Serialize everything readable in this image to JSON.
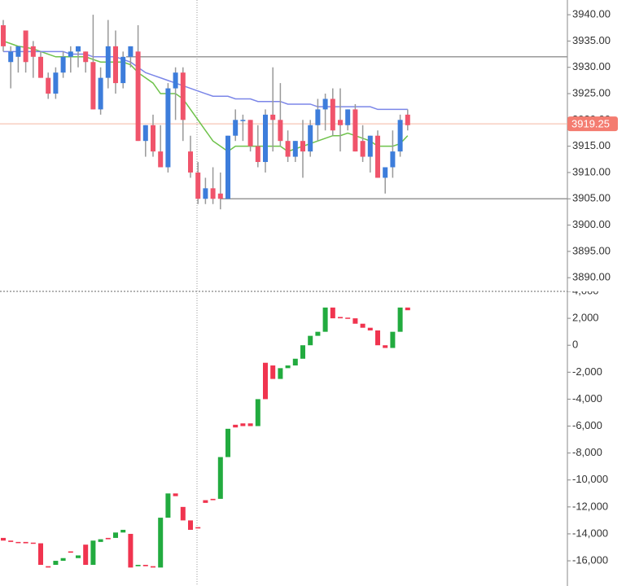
{
  "chart_data": [
    {
      "type": "candlestick",
      "open": [
        3938,
        3931,
        3932,
        3937,
        3934,
        3932,
        3928,
        3925,
        3929,
        3932,
        3933,
        3933,
        3931,
        3922,
        3928,
        3934,
        3927,
        3932,
        3933,
        3916,
        3919,
        3914,
        3911,
        3926,
        3929,
        3914,
        3910,
        3905,
        3907,
        3906,
        3905,
        3917,
        3920,
        3920,
        3915,
        3912,
        3921,
        3920,
        3916,
        3913,
        3916,
        3914,
        3919,
        3922,
        3924,
        3920,
        3919,
        3922,
        3916,
        3913,
        3917,
        3909,
        3911,
        3914,
        3921
      ],
      "high": [
        3939,
        3934,
        3934,
        3937,
        3935,
        3933,
        3929,
        3930,
        3933,
        3934,
        3934,
        3933,
        3940,
        3930,
        3939,
        3937,
        3933,
        3934,
        3938,
        3919,
        3921,
        3919,
        3927,
        3930,
        3930,
        3917,
        3912,
        3909,
        3911,
        3910,
        3917,
        3922,
        3921,
        3920,
        3919,
        3922,
        3930,
        3927,
        3918,
        3916,
        3920,
        3920,
        3924,
        3925,
        3926,
        3926,
        3922,
        3923,
        3919,
        3917,
        3918,
        3911,
        3918,
        3921,
        3922
      ],
      "low": [
        3933,
        3926,
        3929,
        3929,
        3928,
        3928,
        3924,
        3924,
        3928,
        3929,
        3930,
        3929,
        3922,
        3921,
        3926,
        3925,
        3926,
        3930,
        3916,
        3913,
        3913,
        3911,
        3910,
        3920,
        3916,
        3909,
        3904,
        3904,
        3904,
        3903,
        3905,
        3916,
        3916,
        3914,
        3911,
        3910,
        3914,
        3915,
        3912,
        3912,
        3909,
        3913,
        3916,
        3918,
        3917,
        3914,
        3918,
        3914,
        3912,
        3910,
        3909,
        3906,
        3909,
        3913,
        3918
      ],
      "close": [
        3934,
        3933,
        3934,
        3931,
        3932,
        3928,
        3925,
        3929,
        3932,
        3933,
        3934,
        3931,
        3922,
        3928,
        3934,
        3927,
        3932,
        3934,
        3916,
        3919,
        3914,
        3911,
        3926,
        3929,
        3920,
        3910,
        3905,
        3907,
        3905,
        3905,
        3917,
        3920,
        3920,
        3915,
        3912,
        3921,
        3920,
        3916,
        3913,
        3916,
        3914,
        3919,
        3922,
        3924,
        3918,
        3919,
        3922,
        3914,
        3913,
        3917,
        3909,
        3911,
        3914,
        3920,
        3919
      ],
      "up_color": "#3d7ddb",
      "down_color": "#f0546b",
      "lines": [
        {
          "color": "#6ec24a",
          "values": [
            3935,
            3934.5,
            3934,
            3933.8,
            3933.5,
            3933,
            3932.5,
            3932,
            3932,
            3932,
            3932,
            3932,
            3931.5,
            3931,
            3931,
            3931,
            3931,
            3930.5,
            3929,
            3928,
            3927,
            3925,
            3925,
            3925,
            3924,
            3922,
            3920,
            3918,
            3916,
            3915,
            3914,
            3915,
            3915,
            3915,
            3915,
            3915,
            3915,
            3915,
            3914,
            3914.5,
            3915,
            3915.5,
            3916,
            3916.5,
            3917,
            3917,
            3917.5,
            3917,
            3916.5,
            3916,
            3915,
            3915,
            3915,
            3915.5,
            3917
          ]
        },
        {
          "color": "#7b86e8",
          "values": [
            3933,
            3933,
            3933,
            3933,
            3933,
            3933,
            3933,
            3933,
            3933,
            3932.5,
            3932.5,
            3932.5,
            3932,
            3932,
            3932,
            3932,
            3931.5,
            3931,
            3930,
            3929,
            3928.5,
            3928,
            3927.5,
            3927,
            3926.5,
            3926,
            3925.5,
            3925,
            3924.5,
            3924.5,
            3924.5,
            3924,
            3924,
            3924,
            3923.5,
            3923.5,
            3923.5,
            3923.5,
            3923,
            3923,
            3923,
            3923,
            3922.5,
            3922.5,
            3922.5,
            3922.5,
            3922.5,
            3922.5,
            3922.5,
            3922.5,
            3922,
            3922,
            3922,
            3922,
            3922
          ]
        }
      ],
      "levels": [
        3932,
        3905
      ],
      "last_price": 3919.25,
      "ylim": [
        3887.4,
        3942.8
      ],
      "yticks": [
        {
          "value": 3890,
          "label": "3890.00"
        },
        {
          "value": 3895,
          "label": "3895.00"
        },
        {
          "value": 3900,
          "label": "3900.00"
        },
        {
          "value": 3905,
          "label": "3905.00"
        },
        {
          "value": 3910,
          "label": "3910.00"
        },
        {
          "value": 3915,
          "label": "3915.00"
        },
        {
          "value": 3920,
          "label": "3920.00"
        },
        {
          "value": 3925,
          "label": "3925.00"
        },
        {
          "value": 3930,
          "label": "3930.00"
        },
        {
          "value": 3935,
          "label": "3935.00"
        },
        {
          "value": 3940,
          "label": "3940.00"
        }
      ]
    },
    {
      "type": "candlestick",
      "open": [
        -14300,
        -14500,
        -14600,
        -14600,
        -14650,
        -14700,
        -16400,
        -16300,
        -16000,
        -15300,
        -15800,
        -14800,
        -16300,
        -14600,
        -14300,
        -14300,
        -13900,
        -14000,
        -16400,
        -16300,
        -16400,
        -16500,
        -12800,
        -11000,
        -12000,
        -13000,
        -13500,
        -11500,
        -11400,
        -11400,
        -8300,
        -5900,
        -5800,
        -5800,
        -6000,
        -1300,
        -1500,
        -2500,
        -1700,
        -1500,
        -1000,
        0,
        700,
        1000,
        2800,
        2100,
        2050,
        2000,
        1600,
        1300,
        1100,
        0,
        -200,
        1000,
        2800
      ],
      "close": [
        -14500,
        -14600,
        -14650,
        -14700,
        -14700,
        -16300,
        -16500,
        -16000,
        -15800,
        -15400,
        -15600,
        -16300,
        -14500,
        -14400,
        -14400,
        -13900,
        -13700,
        -16500,
        -16300,
        -16400,
        -16500,
        -12800,
        -11000,
        -11200,
        -13000,
        -13700,
        -13600,
        -11700,
        -11500,
        -8300,
        -6200,
        -6100,
        -6000,
        -6000,
        -4000,
        -4000,
        -2500,
        -1700,
        -1500,
        -1000,
        0,
        700,
        1000,
        2800,
        2000,
        2000,
        2000,
        1600,
        1300,
        1100,
        0,
        -200,
        1000,
        2800,
        2600
      ],
      "up_color": "#22ab3f",
      "down_color": "#f0344f",
      "ylim": [
        -17870,
        4000
      ],
      "yticks": [
        {
          "value": 4000,
          "label": "4,000"
        },
        {
          "value": 2000,
          "label": "2,000"
        },
        0,
        {
          "value": -2000,
          "label": "-2,000"
        },
        {
          "value": -4000,
          "label": "-4,000"
        },
        {
          "value": -6000,
          "label": "-6,000"
        },
        {
          "value": -8000,
          "label": "-8,000"
        },
        {
          "value": -10000,
          "label": "-10,000"
        },
        {
          "value": -12000,
          "label": "-12,000"
        },
        {
          "value": -14000,
          "label": "-14,000"
        },
        {
          "value": -16000,
          "label": "-16,000"
        }
      ]
    }
  ]
}
